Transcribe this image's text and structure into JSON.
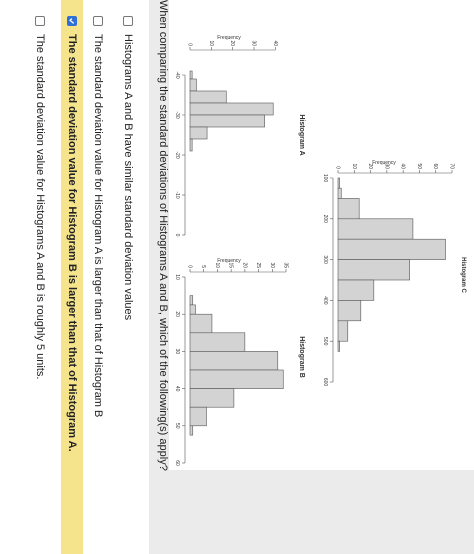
{
  "question": {
    "text": "When comparing the standard deviations of Histograms A and B, which of the following(s) apply?"
  },
  "options": [
    {
      "label": "Histograms A and B have similar standard deviation values",
      "checked": false
    },
    {
      "label": "The standard deviation value for Histogram A is larger than that of Histogram B",
      "checked": false
    },
    {
      "label": "The standard deviation value for Histogram B is larger than that of Histogram A.",
      "checked": true
    },
    {
      "label": "The standard deviation value for Histograms A and B is roughly 5 units.",
      "checked": false
    }
  ],
  "icons": {
    "checkbox_checked": "checkmark-icon"
  },
  "colors": {
    "panel_gray": "#ebebeb",
    "selected_highlight": "#f6e48c",
    "checkbox_blue": "#2f6fd6",
    "bar_fill": "#d3d3d3",
    "bar_stroke": "#555555"
  },
  "chart_data": [
    {
      "type": "bar",
      "title": "Histogram A",
      "ylabel": "Frequency",
      "xlabel": "",
      "xlim": [
        -45,
        0
      ],
      "ylim": [
        0,
        45
      ],
      "x_ticks": [
        -40,
        -30,
        -20,
        -10,
        0
      ],
      "y_ticks": [
        0,
        10,
        20,
        30,
        40
      ],
      "bin_edges": [
        -41,
        -39,
        -36,
        -33,
        -30,
        -27,
        -24,
        -21
      ],
      "values": [
        1,
        3,
        17,
        39,
        35,
        8,
        1
      ]
    },
    {
      "type": "bar",
      "title": "Histogram B",
      "ylabel": "Frequency",
      "xlabel": "",
      "xlim": [
        10,
        60
      ],
      "ylim": [
        0,
        35
      ],
      "x_ticks": [
        10,
        20,
        30,
        40,
        50,
        60
      ],
      "y_ticks": [
        0,
        5,
        10,
        15,
        20,
        25,
        30,
        35
      ],
      "bin_edges": [
        15,
        17.5,
        20,
        25,
        30,
        35,
        40,
        45,
        50,
        52.5
      ],
      "values": [
        1,
        2,
        8,
        20,
        32,
        34,
        16,
        6,
        1
      ]
    },
    {
      "type": "bar",
      "title": "Histogram C",
      "ylabel": "Frequency",
      "xlabel": "",
      "xlim": [
        100,
        600
      ],
      "ylim": [
        0,
        70
      ],
      "x_ticks": [
        100,
        200,
        300,
        400,
        500,
        600
      ],
      "y_ticks": [
        0,
        10,
        20,
        30,
        40,
        50,
        60,
        70
      ],
      "bin_edges": [
        100,
        125,
        150,
        200,
        250,
        300,
        350,
        400,
        450,
        500,
        525
      ],
      "values": [
        1,
        2,
        13,
        46,
        66,
        44,
        22,
        14,
        6,
        1
      ]
    }
  ]
}
